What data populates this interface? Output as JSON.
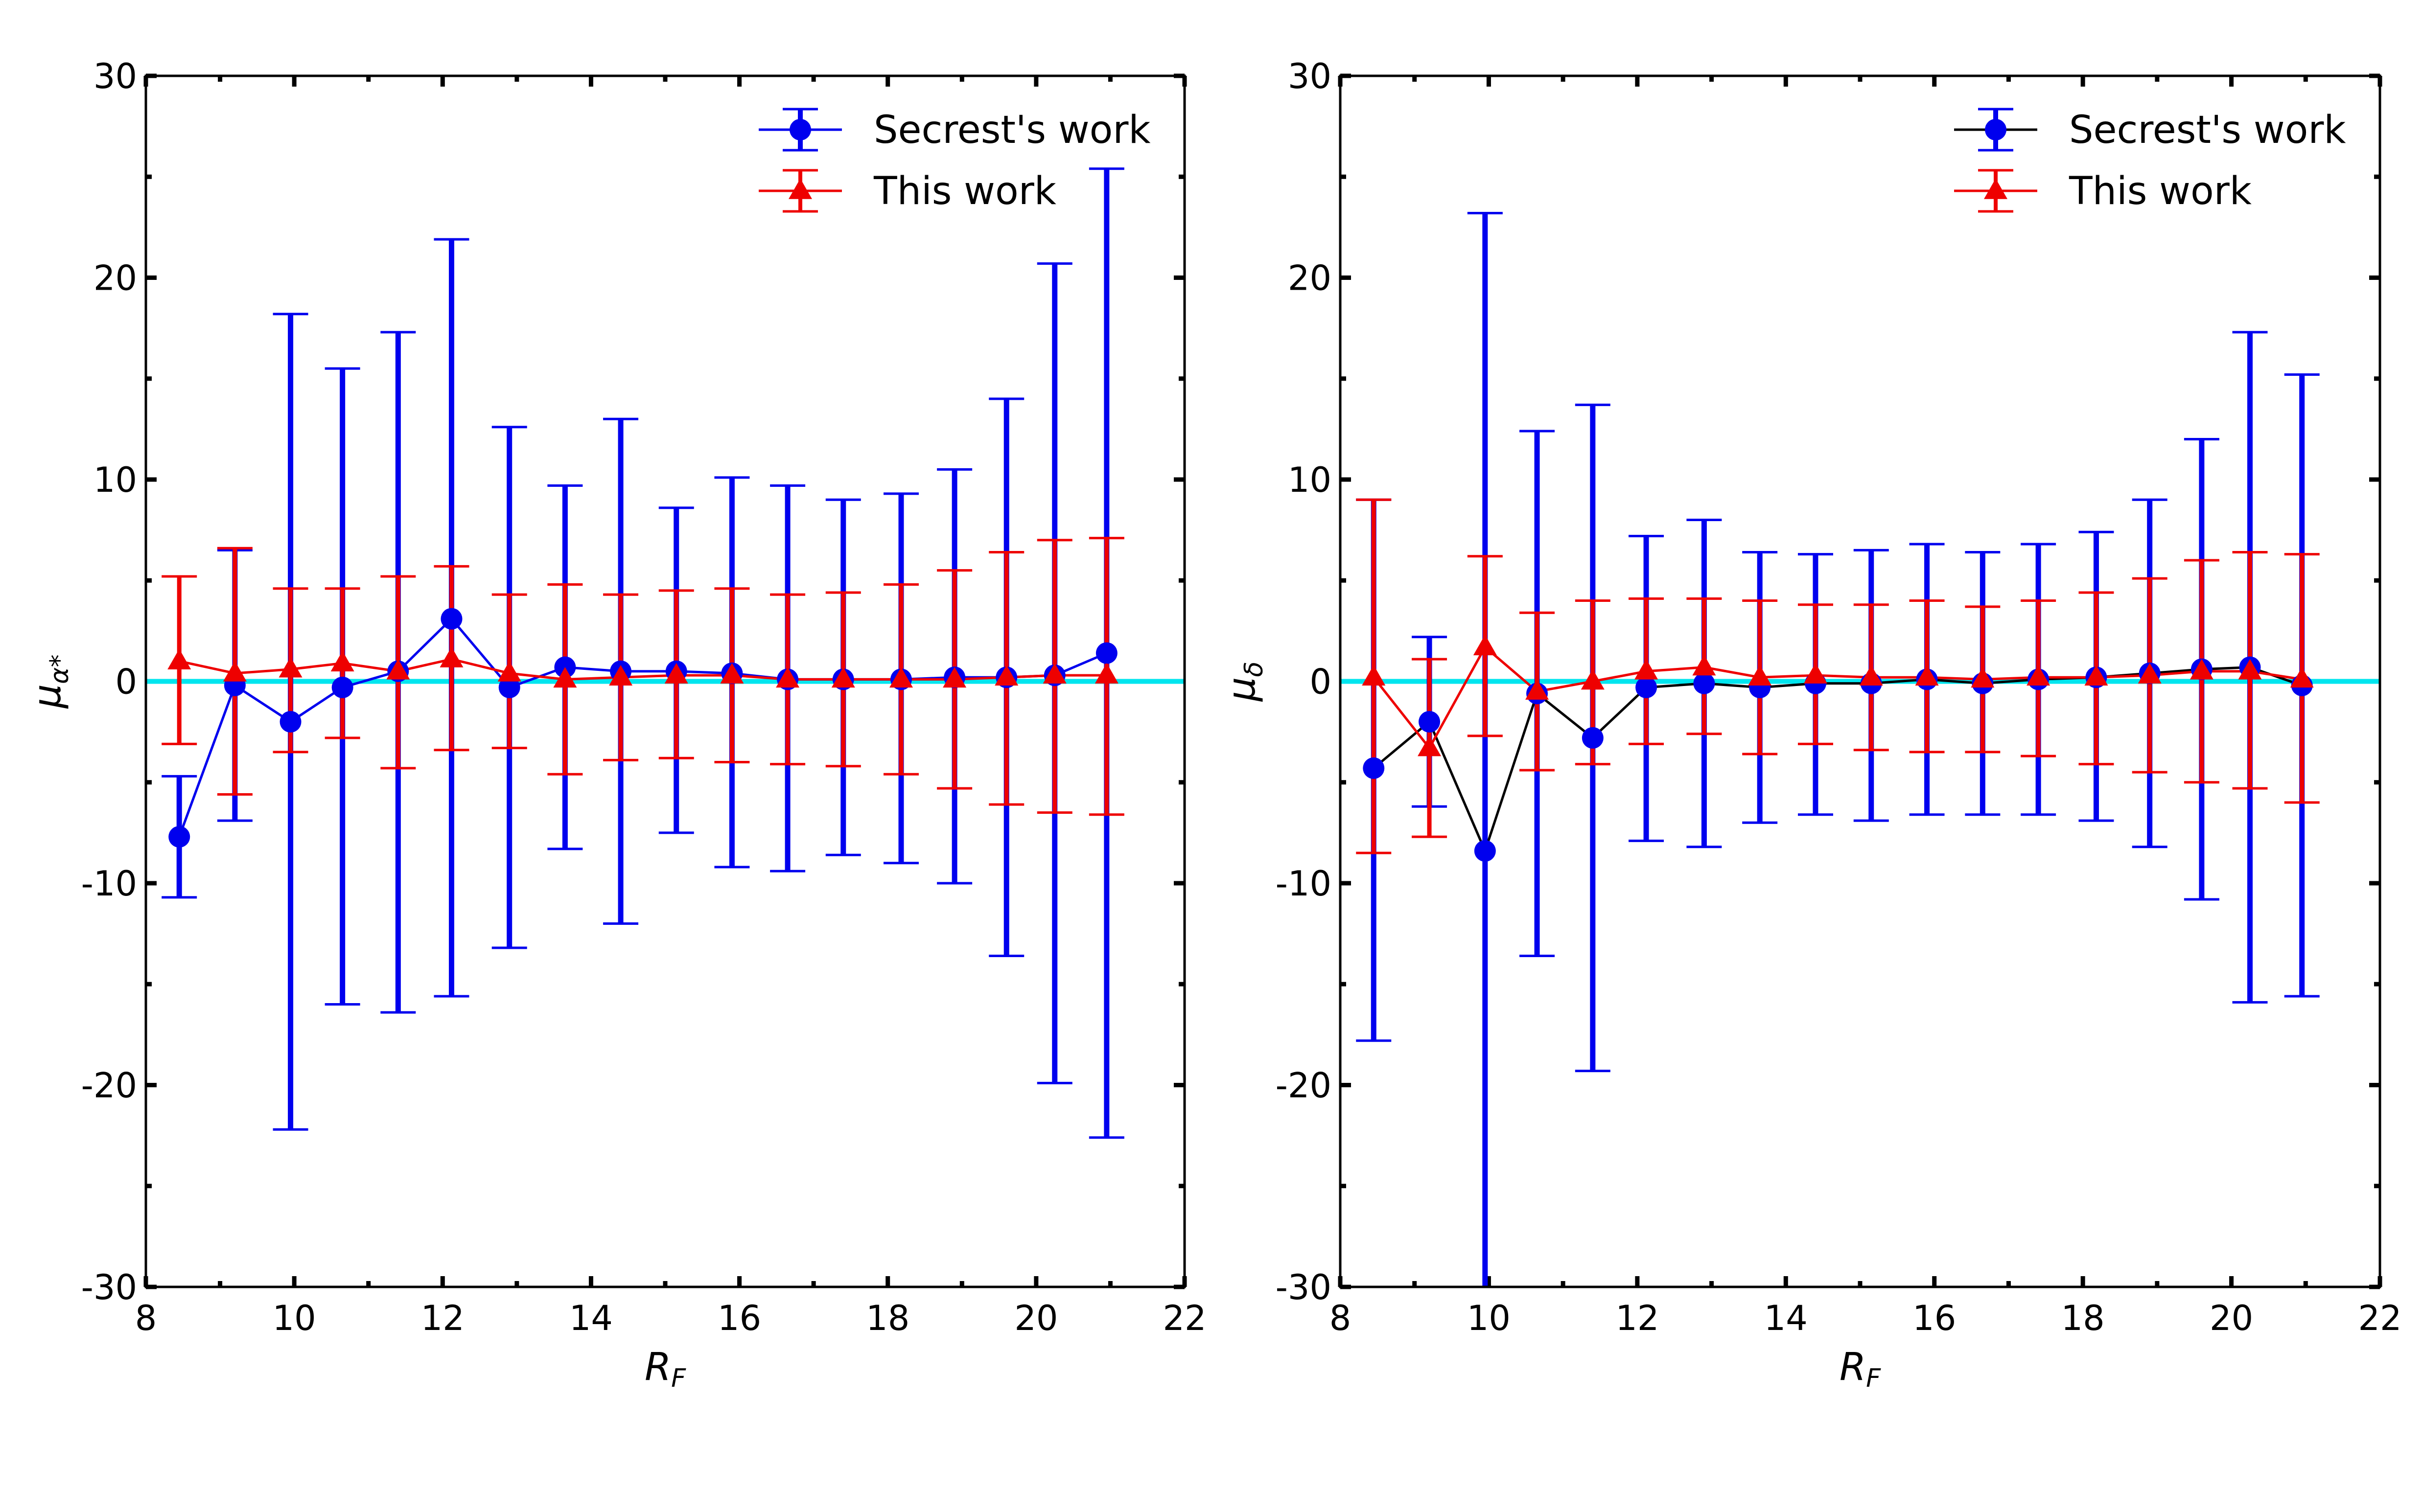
{
  "chart_data": [
    {
      "type": "errorbar",
      "panel": "left",
      "xlabel": "R",
      "xlabel_sub": "F",
      "ylabel": "μ",
      "ylabel_sub": "α*",
      "xlim": [
        8,
        22
      ],
      "ylim": [
        -30,
        30
      ],
      "xticks": [
        8,
        10,
        12,
        14,
        16,
        18,
        20,
        22
      ],
      "yticks": [
        -30,
        -20,
        -10,
        0,
        10,
        20,
        30
      ],
      "ytick_labels": [
        "-30",
        "-20",
        "-10",
        "0",
        "10",
        "20",
        "30"
      ],
      "reference_line": {
        "y": 0,
        "color": "#00e5ee"
      },
      "legend_position": "upper right",
      "series": [
        {
          "name": "Secrest's work",
          "marker": "circle",
          "line_color": "#0000ee",
          "marker_color": "#0000ee",
          "errbar_color": "#0000ee",
          "x": [
            8.45,
            9.2,
            9.95,
            10.65,
            11.4,
            12.12,
            12.9,
            13.65,
            14.4,
            15.15,
            15.9,
            16.65,
            17.4,
            18.18,
            18.9,
            19.6,
            20.25,
            20.95
          ],
          "y": [
            -7.7,
            -0.2,
            -2.0,
            -0.3,
            0.5,
            3.1,
            -0.3,
            0.7,
            0.5,
            0.5,
            0.4,
            0.1,
            0.1,
            0.1,
            0.2,
            0.2,
            0.3,
            1.4
          ],
          "yerr_low": [
            -10.7,
            -6.9,
            -22.2,
            -16.0,
            -16.4,
            -15.6,
            -13.2,
            -8.3,
            -12.0,
            -7.5,
            -9.2,
            -9.4,
            -8.6,
            -9.0,
            -10.0,
            -13.6,
            -19.9,
            -22.6
          ],
          "yerr_high": [
            -4.7,
            6.5,
            18.2,
            15.5,
            17.3,
            21.9,
            12.6,
            9.7,
            13.0,
            8.6,
            10.1,
            9.7,
            9.0,
            9.3,
            10.5,
            14.0,
            20.7,
            25.4
          ]
        },
        {
          "name": "This work",
          "marker": "triangle",
          "line_color": "#ee0000",
          "marker_color": "#ee0000",
          "errbar_color": "#ee0000",
          "x": [
            8.45,
            9.2,
            9.95,
            10.65,
            11.4,
            12.12,
            12.9,
            13.65,
            14.4,
            15.15,
            15.9,
            16.65,
            17.4,
            18.18,
            18.9,
            19.6,
            20.25,
            20.95
          ],
          "y": [
            1.0,
            0.4,
            0.6,
            0.9,
            0.5,
            1.1,
            0.4,
            0.1,
            0.2,
            0.3,
            0.3,
            0.1,
            0.1,
            0.1,
            0.1,
            0.2,
            0.3,
            0.3
          ],
          "yerr_low": [
            -3.1,
            -5.6,
            -3.5,
            -2.8,
            -4.3,
            -3.4,
            -3.3,
            -4.6,
            -3.9,
            -3.8,
            -4.0,
            -4.1,
            -4.2,
            -4.6,
            -5.3,
            -6.1,
            -6.5,
            -6.6
          ],
          "yerr_high": [
            5.2,
            6.6,
            4.6,
            4.6,
            5.2,
            5.7,
            4.3,
            4.8,
            4.3,
            4.5,
            4.6,
            4.3,
            4.4,
            4.8,
            5.5,
            6.4,
            7.0,
            7.1
          ]
        }
      ]
    },
    {
      "type": "errorbar",
      "panel": "right",
      "xlabel": "R",
      "xlabel_sub": "F",
      "ylabel": "μ",
      "ylabel_sub": "δ",
      "xlim": [
        8,
        22
      ],
      "ylim": [
        -30,
        30
      ],
      "xticks": [
        8,
        10,
        12,
        14,
        16,
        18,
        20,
        22
      ],
      "yticks": [
        -30,
        -20,
        -10,
        0,
        10,
        20,
        30
      ],
      "ytick_labels": [
        "-30",
        "-20",
        "-10",
        "0",
        "10",
        "20",
        "30"
      ],
      "reference_line": {
        "y": 0,
        "color": "#00e5ee"
      },
      "legend_position": "upper right",
      "series": [
        {
          "name": "Secrest's work",
          "marker": "circle",
          "line_color": "#000000",
          "marker_color": "#0000ee",
          "errbar_color": "#0000ee",
          "x": [
            8.45,
            9.2,
            9.95,
            10.65,
            11.4,
            12.12,
            12.9,
            13.65,
            14.4,
            15.15,
            15.9,
            16.65,
            17.4,
            18.18,
            18.9,
            19.6,
            20.25,
            20.95
          ],
          "y": [
            -4.3,
            -2.0,
            -8.4,
            -0.6,
            -2.8,
            -0.3,
            -0.1,
            -0.3,
            -0.1,
            -0.1,
            0.1,
            -0.1,
            0.1,
            0.2,
            0.4,
            0.6,
            0.7,
            -0.2
          ],
          "yerr_low": [
            -17.8,
            -6.2,
            -30.0,
            -13.6,
            -19.3,
            -7.9,
            -8.2,
            -7.0,
            -6.6,
            -6.9,
            -6.6,
            -6.6,
            -6.6,
            -6.9,
            -8.2,
            -10.8,
            -15.9,
            -15.6
          ],
          "yerr_high": [
            9.0,
            2.2,
            23.2,
            12.4,
            13.7,
            7.2,
            8.0,
            6.4,
            6.3,
            6.5,
            6.8,
            6.4,
            6.8,
            7.4,
            9.0,
            12.0,
            17.3,
            15.2
          ]
        },
        {
          "name": "This work",
          "marker": "triangle",
          "line_color": "#ee0000",
          "marker_color": "#ee0000",
          "errbar_color": "#ee0000",
          "x": [
            8.45,
            9.2,
            9.95,
            10.65,
            11.4,
            12.12,
            12.9,
            13.65,
            14.4,
            15.15,
            15.9,
            16.65,
            17.4,
            18.18,
            18.9,
            19.6,
            20.25,
            20.95
          ],
          "y": [
            0.2,
            -3.3,
            1.7,
            -0.5,
            0.0,
            0.5,
            0.7,
            0.2,
            0.3,
            0.2,
            0.2,
            0.1,
            0.2,
            0.2,
            0.3,
            0.5,
            0.5,
            0.1
          ],
          "yerr_low": [
            -8.5,
            -7.7,
            -2.7,
            -4.4,
            -4.1,
            -3.1,
            -2.6,
            -3.6,
            -3.1,
            -3.4,
            -3.5,
            -3.5,
            -3.7,
            -4.1,
            -4.5,
            -5.0,
            -5.3,
            -6.0
          ],
          "yerr_high": [
            9.0,
            1.1,
            6.2,
            3.4,
            4.0,
            4.1,
            4.1,
            4.0,
            3.8,
            3.8,
            4.0,
            3.7,
            4.0,
            4.4,
            5.1,
            6.0,
            6.4,
            6.3
          ]
        }
      ]
    }
  ]
}
